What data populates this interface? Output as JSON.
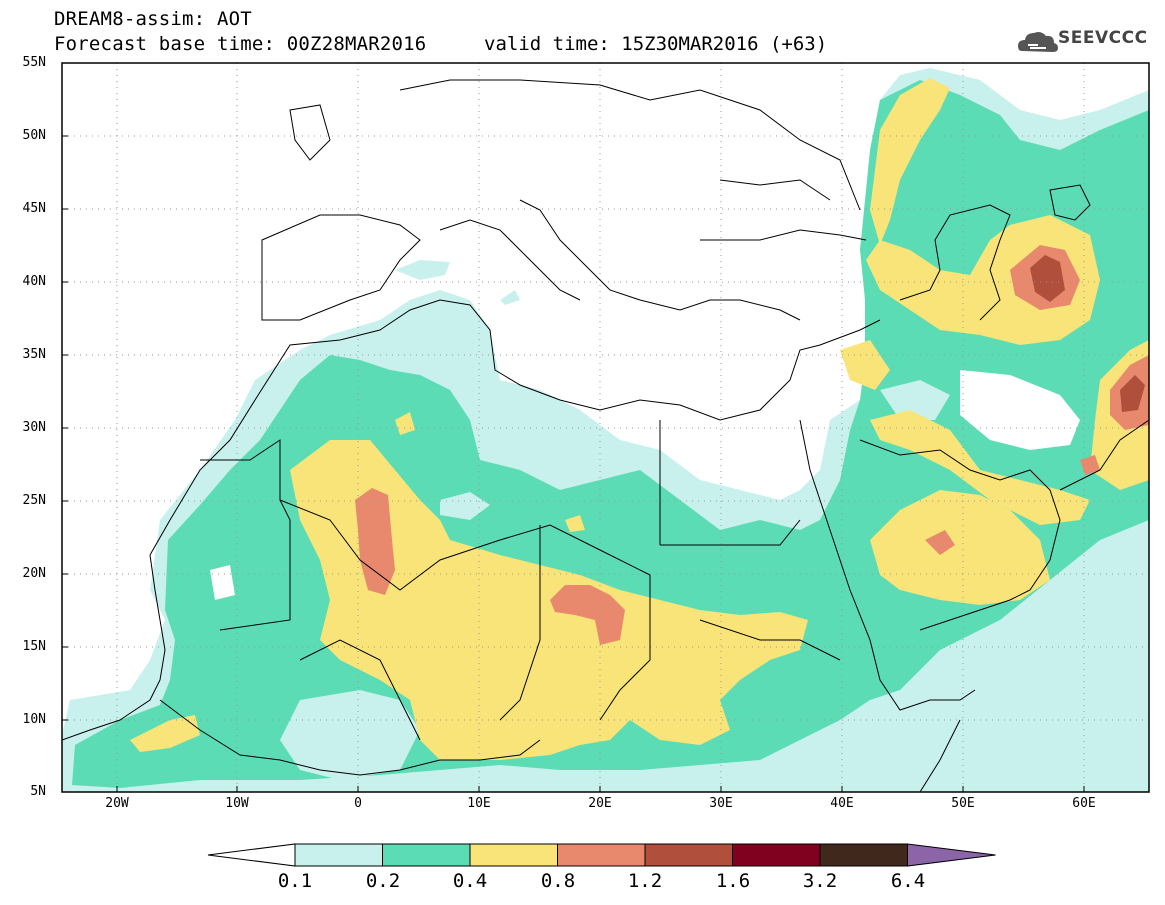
{
  "header": {
    "title_line1": "DREAM8-assim: AOT",
    "title_line2": "Forecast base time: 00Z28MAR2016",
    "valid_time": "valid time: 15Z30MAR2016 (+63)",
    "logo_text": "SEEVCCC"
  },
  "map": {
    "projection": "lat-lon",
    "lon_range": [
      "25W",
      "65E"
    ],
    "lat_range": [
      "5N",
      "55N"
    ],
    "lat_ticks": [
      "55N",
      "50N",
      "45N",
      "40N",
      "35N",
      "30N",
      "25N",
      "20N",
      "15N",
      "10N",
      "5N"
    ],
    "lon_ticks": [
      "20W",
      "10W",
      "0",
      "10E",
      "20E",
      "30E",
      "40E",
      "50E",
      "60E"
    ],
    "grid": "dotted"
  },
  "colorbar": {
    "labels": [
      "0.1",
      "0.2",
      "0.4",
      "0.8",
      "1.2",
      "1.6",
      "3.2",
      "6.4"
    ],
    "colors": [
      "#c8f0ec",
      "#5cdcb4",
      "#f8e478",
      "#e8886c",
      "#b0503c",
      "#800020",
      "#40281c",
      "#8c64a8"
    ],
    "lower_extension_color": "#ffffff"
  }
}
